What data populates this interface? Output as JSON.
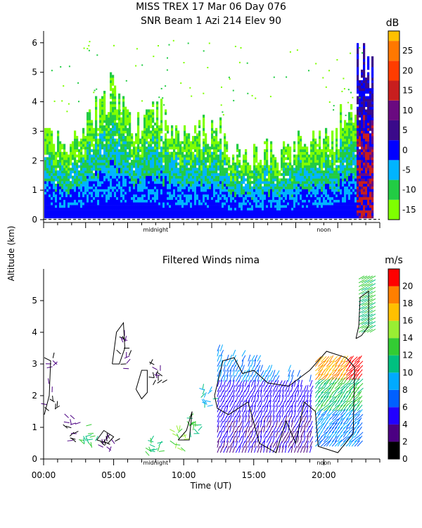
{
  "header": {
    "line1": "MISS TREX  17 Mar 06 Day 076",
    "line2": "SNR Beam 1 Azi 214 Elev 90"
  },
  "shared_ylabel": "Altitude (km)",
  "chart_data": [
    {
      "type": "heatmap",
      "name_text": "",
      "xrange_hours": [
        0,
        24
      ],
      "ylim": [
        0,
        6.4
      ],
      "y_ticks": [
        0,
        1,
        2,
        3,
        4,
        5,
        6
      ],
      "x_markers": [
        {
          "hour": 8,
          "label": "midnight"
        },
        {
          "hour": 20,
          "label": "noon"
        }
      ],
      "colorbar": {
        "unit": "dB",
        "ticks": [
          -15,
          -10,
          -5,
          0,
          5,
          10,
          15,
          20,
          25
        ],
        "colors": [
          "#7fff00",
          "#22cc44",
          "#00b4ff",
          "#0000ff",
          "#3a0a8a",
          "#6a0a80",
          "#c81e1e",
          "#ff3c00",
          "#ff7800",
          "#ffc000",
          "#ffdc00"
        ]
      },
      "grid": false
    },
    {
      "type": "scatter",
      "title": "Filtered Winds nima",
      "xrange_hours": [
        0,
        24
      ],
      "ylim": [
        0,
        6
      ],
      "y_ticks": [
        0,
        1,
        2,
        3,
        4,
        5
      ],
      "x_ticks": [
        "00:00",
        "05:00",
        "10:00",
        "15:00",
        "20:00"
      ],
      "x_tick_hours": [
        0,
        5,
        10,
        15,
        20
      ],
      "x_markers": [
        {
          "hour": 8,
          "label": "midnight"
        },
        {
          "hour": 20,
          "label": "noon"
        }
      ],
      "xlabel": "Time (UT)",
      "colorbar": {
        "unit": "m/s",
        "ticks": [
          0,
          2,
          4,
          6,
          8,
          10,
          12,
          14,
          16,
          18,
          20
        ],
        "colors": [
          "#000000",
          "#4b0082",
          "#2200ff",
          "#0060ff",
          "#00aaff",
          "#00c080",
          "#33cc33",
          "#99ee33",
          "#ffc000",
          "#ff7f00",
          "#ff0000"
        ]
      },
      "grid": false
    }
  ]
}
